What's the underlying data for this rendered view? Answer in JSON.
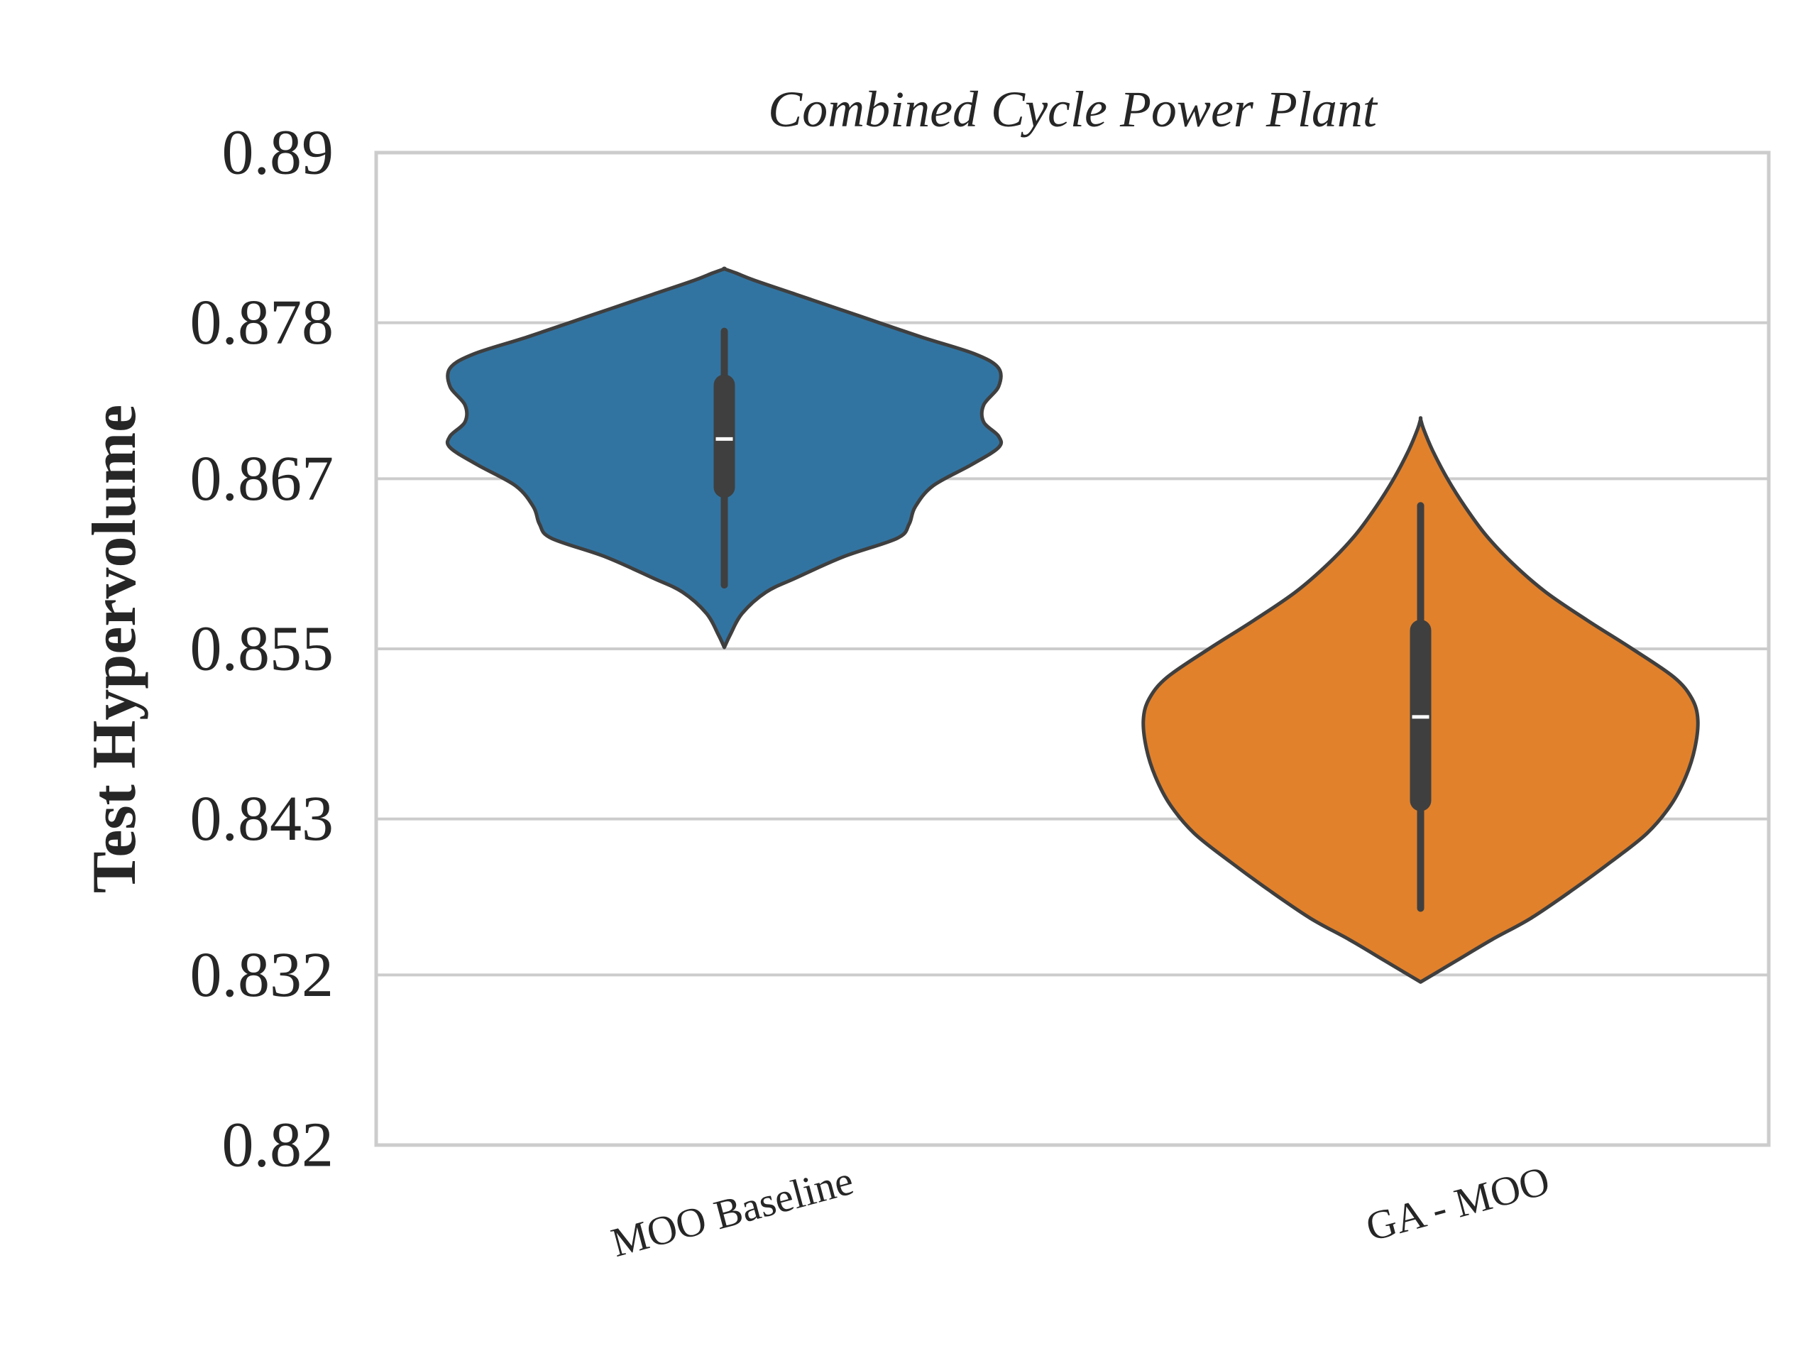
{
  "chart_data": {
    "type": "violin",
    "title": "Combined Cycle Power Plant",
    "xlabel": "",
    "ylabel": "Test Hypervolume",
    "ylim": [
      0.82,
      0.89
    ],
    "yticks": [
      0.82,
      0.832,
      0.843,
      0.855,
      0.867,
      0.878,
      0.89
    ],
    "ytick_labels": [
      "0.82",
      "0.832",
      "0.843",
      "0.855",
      "0.867",
      "0.878",
      "0.89"
    ],
    "grid": "horizontal",
    "categories": [
      "MOO Baseline",
      "GA - MOO"
    ],
    "series": [
      {
        "category": "MOO Baseline",
        "color": "#3274a1",
        "median": 0.8698,
        "q1": 0.8664,
        "q3": 0.8736,
        "whisker_low": 0.8595,
        "whisker_high": 0.8774,
        "range": [
          0.8551,
          0.8818
        ],
        "density": [
          [
            0.8551,
            0.0
          ],
          [
            0.856,
            0.02
          ],
          [
            0.8575,
            0.06
          ],
          [
            0.859,
            0.14
          ],
          [
            0.86,
            0.24
          ],
          [
            0.8615,
            0.4
          ],
          [
            0.8628,
            0.58
          ],
          [
            0.8638,
            0.62
          ],
          [
            0.865,
            0.64
          ],
          [
            0.8665,
            0.7
          ],
          [
            0.868,
            0.83
          ],
          [
            0.8692,
            0.92
          ],
          [
            0.87,
            0.92
          ],
          [
            0.871,
            0.87
          ],
          [
            0.8722,
            0.87
          ],
          [
            0.8735,
            0.92
          ],
          [
            0.8748,
            0.92
          ],
          [
            0.8758,
            0.84
          ],
          [
            0.877,
            0.66
          ],
          [
            0.8785,
            0.45
          ],
          [
            0.88,
            0.24
          ],
          [
            0.881,
            0.1
          ],
          [
            0.8815,
            0.04
          ],
          [
            0.8818,
            0.0
          ]
        ]
      },
      {
        "category": "GA - MOO",
        "color": "#e1812c",
        "median": 0.8502,
        "q1": 0.8443,
        "q3": 0.8563,
        "whisker_low": 0.8367,
        "whisker_high": 0.8651,
        "range": [
          0.8315,
          0.8712
        ],
        "density": [
          [
            0.8315,
            0.0
          ],
          [
            0.832,
            0.04
          ],
          [
            0.833,
            0.12
          ],
          [
            0.8345,
            0.24
          ],
          [
            0.836,
            0.37
          ],
          [
            0.838,
            0.51
          ],
          [
            0.84,
            0.64
          ],
          [
            0.842,
            0.76
          ],
          [
            0.844,
            0.84
          ],
          [
            0.846,
            0.89
          ],
          [
            0.848,
            0.92
          ],
          [
            0.85,
            0.93
          ],
          [
            0.8515,
            0.91
          ],
          [
            0.853,
            0.85
          ],
          [
            0.855,
            0.71
          ],
          [
            0.857,
            0.56
          ],
          [
            0.859,
            0.42
          ],
          [
            0.861,
            0.31
          ],
          [
            0.863,
            0.22
          ],
          [
            0.865,
            0.15
          ],
          [
            0.867,
            0.09
          ],
          [
            0.869,
            0.04
          ],
          [
            0.8705,
            0.01
          ],
          [
            0.8712,
            0.0
          ]
        ]
      }
    ]
  }
}
